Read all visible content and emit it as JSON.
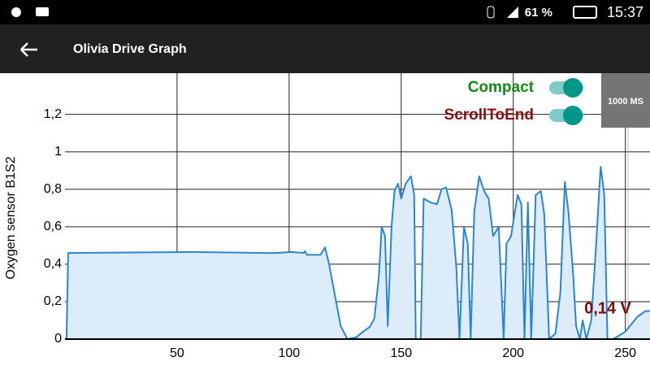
{
  "status_bar": {
    "battery": "61 %",
    "time": "15:37"
  },
  "app_bar": {
    "title": "Olivia Drive Graph"
  },
  "controls": {
    "toggle_1": "Compact",
    "toggle_2": "ScrollToEnd",
    "button": "1000 MS"
  },
  "chart_data": {
    "type": "line",
    "y_label": "Oxygen sensor B1S2",
    "annotation": "0,14 V",
    "color": "#2b86d0",
    "fill_color": "#dcecfb",
    "x": [
      0.7,
      1.4,
      58,
      90.6,
      94,
      101,
      106.5,
      107,
      108,
      114,
      116,
      117.8,
      123,
      126,
      130,
      133,
      136,
      138,
      140,
      141.3,
      142.8,
      144,
      145.7,
      147,
      148.6,
      150,
      152,
      154.3,
      155.8,
      156.5,
      158.7,
      160,
      163,
      166,
      168,
      170,
      172.5,
      174.6,
      176,
      178,
      179.7,
      181,
      182.6,
      184.8,
      187,
      189,
      191,
      193.5,
      195.7,
      197,
      199,
      200.7,
      202,
      203.6,
      205,
      206.5,
      208,
      210,
      212.3,
      213.8,
      216,
      218.8,
      221,
      223,
      224.6,
      226.8,
      228,
      229.7,
      231,
      232.6,
      234.8,
      237,
      238.4,
      239,
      240.6,
      242,
      244.6,
      250,
      255.4,
      259,
      261
    ],
    "values": [
      0,
      0.46,
      0.465,
      0.46,
      0.46,
      0.465,
      0.46,
      0.47,
      0.45,
      0.45,
      0.49,
      0.4,
      0.07,
      0,
      0.01,
      0.04,
      0.065,
      0.11,
      0.33,
      0.6,
      0.55,
      0.07,
      0.6,
      0.79,
      0.83,
      0.75,
      0.83,
      0.87,
      0.77,
      0,
      0,
      0.75,
      0.73,
      0.72,
      0.8,
      0.81,
      0.69,
      0.38,
      0,
      0.6,
      0.51,
      0,
      0.68,
      0.87,
      0.79,
      0.75,
      0.55,
      0.6,
      0,
      0.51,
      0.55,
      0.68,
      0.77,
      0.72,
      0,
      0.73,
      0,
      0.77,
      0.79,
      0.67,
      0,
      0.03,
      0.25,
      0.84,
      0.68,
      0.33,
      0.07,
      0,
      0.1,
      0,
      0.1,
      0.51,
      0.81,
      0.92,
      0.77,
      0,
      0,
      0.04,
      0.12,
      0.15,
      0.15
    ],
    "xlim": [
      0,
      261
    ],
    "xticks": [
      50,
      100,
      150,
      200,
      250
    ],
    "ylim": [
      0,
      1.42
    ],
    "yticks": [
      0,
      {
        "value": 0.2,
        "label": "0,2"
      },
      {
        "value": 0.4,
        "label": "0,4"
      },
      {
        "value": 0.6,
        "label": "0,6"
      },
      {
        "value": 0.8,
        "label": "0,8"
      },
      1,
      {
        "value": 1.2,
        "label": "1,2"
      }
    ],
    "grid": true
  }
}
